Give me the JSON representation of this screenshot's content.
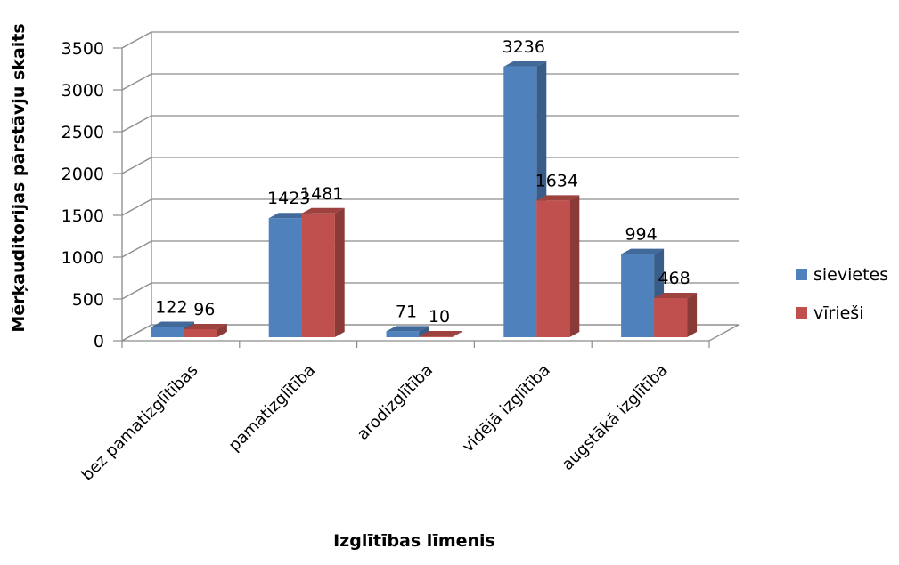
{
  "chart_data": {
    "type": "bar",
    "categories": [
      "bez pamatizglītības",
      "pamatizglītība",
      "arodizglītība",
      "vidējā izglītība",
      "augstākā izglītība"
    ],
    "series": [
      {
        "name": "sievietes",
        "values": [
          122,
          1423,
          71,
          3236,
          994
        ],
        "color": "#4F81BD"
      },
      {
        "name": "vīrieši",
        "values": [
          96,
          1481,
          10,
          1634,
          468
        ],
        "color": "#C0504D"
      }
    ],
    "data_labels": [
      [
        "122",
        "1423",
        "71",
        "3236",
        "994"
      ],
      [
        "96",
        "1481",
        "10",
        "1634",
        "468"
      ]
    ],
    "xlabel": "Izglītības līmenis",
    "ylabel": "Mērķauditorijas pārstāvju skaits",
    "ylim": [
      0,
      3500
    ],
    "yticks": [
      0,
      500,
      1000,
      1500,
      2000,
      2500,
      3000,
      3500
    ],
    "grid": true,
    "style": "3d-clustered-column",
    "legend_position": "right"
  }
}
